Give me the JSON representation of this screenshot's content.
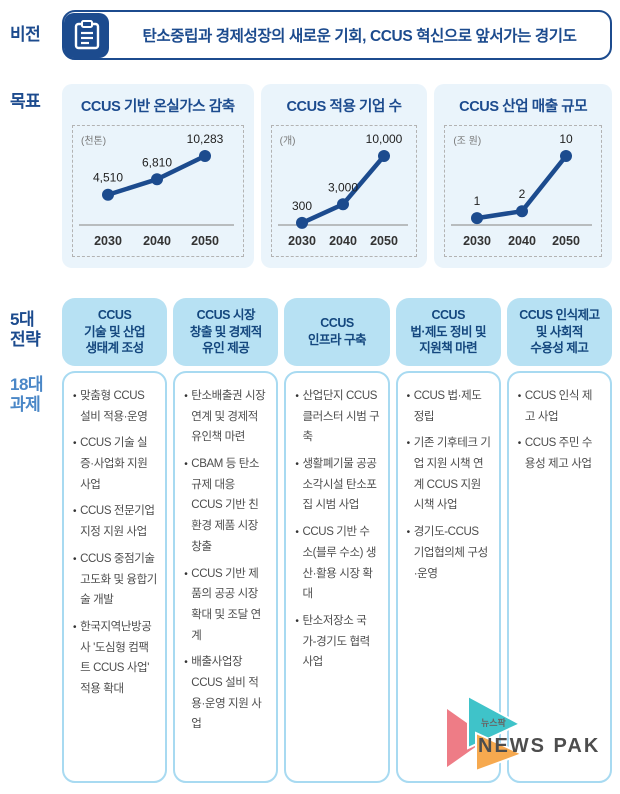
{
  "vision": {
    "label": "비전",
    "text": "탄소중립과 경제성장의 새로운 기회, CCUS 혁신으로 앞서가는 경기도"
  },
  "goals": {
    "label": "목표"
  },
  "chart_data": [
    {
      "type": "line",
      "title": "CCUS 기반 온실가스 감축",
      "unit": "(천톤)",
      "categories": [
        "2030",
        "2040",
        "2050"
      ],
      "values": [
        4510,
        6810,
        10283
      ],
      "value_labels": [
        "4,510",
        "6,810",
        "10,283"
      ],
      "xlabel": "",
      "ylabel": "",
      "ylim": [
        0,
        10283
      ],
      "grid": false,
      "legend": false,
      "line_color": "#1c4b8e"
    },
    {
      "type": "line",
      "title": "CCUS 적용 기업 수",
      "unit": "(개)",
      "categories": [
        "2030",
        "2040",
        "2050"
      ],
      "values": [
        300,
        3000,
        10000
      ],
      "value_labels": [
        "300",
        "3,000",
        "10,000"
      ],
      "xlabel": "",
      "ylabel": "",
      "ylim": [
        0,
        10000
      ],
      "grid": false,
      "legend": false,
      "line_color": "#1c4b8e"
    },
    {
      "type": "line",
      "title": "CCUS 산업 매출 규모",
      "unit": "(조 원)",
      "categories": [
        "2030",
        "2040",
        "2050"
      ],
      "values": [
        1,
        2,
        10
      ],
      "value_labels": [
        "1",
        "2",
        "10"
      ],
      "xlabel": "",
      "ylabel": "",
      "ylim": [
        0,
        10
      ],
      "grid": false,
      "legend": false,
      "line_color": "#1c4b8e"
    }
  ],
  "strategies": {
    "label": "5대\n전략",
    "tasks_label": "18대\n과제",
    "columns": [
      {
        "header": "CCUS\n기술 및 산업\n생태계 조성",
        "tasks": [
          "맞춤형 CCUS 설비 적용·운영",
          "CCUS 기술 실증·사업화 지원 사업",
          "CCUS 전문기업 지정 지원 사업",
          "CCUS 중점기술 고도화 및 융합기술 개발",
          "한국지역난방공사 '도심형 컴팩트 CCUS 사업' 적용 확대"
        ]
      },
      {
        "header": "CCUS 시장\n창출 및 경제적\n유인 제공",
        "tasks": [
          "탄소배출권 시장 연계 및 경제적 유인책 마련",
          "CBAM 등 탄소규제 대응 CCUS 기반 친환경 제품 시장 창출",
          "CCUS 기반 제품의 공공 시장 확대 및 조달 연계",
          "배출사업장 CCUS 설비 적용·운영 지원 사업"
        ]
      },
      {
        "header": "CCUS\n인프라 구축",
        "tasks": [
          "산업단지 CCUS 클러스터 시범 구축",
          "생활폐기물 공공소각시설 탄소포집 시범 사업",
          "CCUS 기반 수소(블루 수소) 생산·활용 시장 확대",
          "탄소저장소 국가-경기도 협력 사업"
        ]
      },
      {
        "header": "CCUS\n법·제도 정비 및\n지원책 마련",
        "tasks": [
          "CCUS 법·제도 정립",
          "기존 기후테크 기업 지원 시책 연계 CCUS 지원 시책 사업",
          "경기도-CCUS 기업협의체 구성·운영"
        ]
      },
      {
        "header": "CCUS 인식제고\n및 사회적\n수용성 제고",
        "tasks": [
          "CCUS 인식 제고 사업",
          "CCUS 주민 수용성 제고 사업"
        ]
      }
    ]
  },
  "watermark": {
    "small": "뉴스팍",
    "large": "NEWS PAK"
  },
  "colors": {
    "accent": "#1c4b8e",
    "strategy_header_bg": "#b7e1f3",
    "task_column_border": "#a8daf1",
    "goal_card_bg": "#eaf4fb",
    "tasks_label_blue": "#4a87c7",
    "watermark_pink": "#ee7c86",
    "watermark_teal": "#3fc3c9",
    "watermark_orange": "#f6a94f"
  }
}
